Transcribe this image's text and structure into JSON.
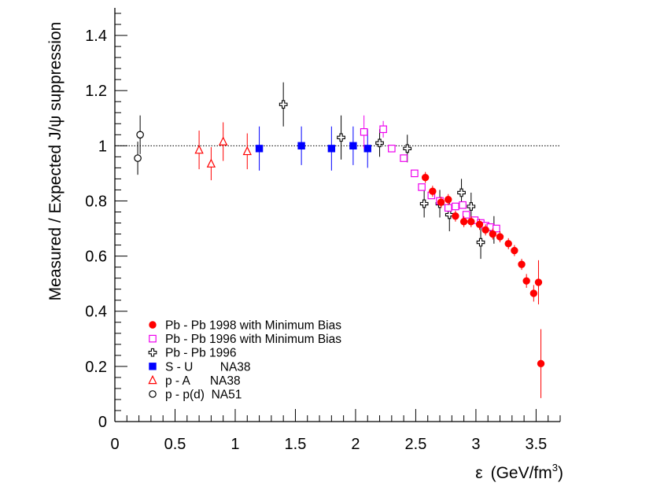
{
  "chart_data": {
    "type": "scatter",
    "title": "",
    "xlabel_symbol": "ε",
    "xlabel_units": "(GeV/fm",
    "xlabel_units_exp": "3",
    "xlabel_units_close": ")",
    "ylabel": "Measured / Expected  J/ψ suppression",
    "xlim": [
      0,
      3.7
    ],
    "ylim": [
      0,
      1.5
    ],
    "reference_line": 1.0,
    "x_tick_labels": [
      {
        "v": 0,
        "t": "0"
      },
      {
        "v": 0.5,
        "t": "0.5"
      },
      {
        "v": 1,
        "t": "1"
      },
      {
        "v": 1.5,
        "t": "1.5"
      },
      {
        "v": 2,
        "t": "2"
      },
      {
        "v": 2.5,
        "t": "2.5"
      },
      {
        "v": 3,
        "t": "3"
      },
      {
        "v": 3.5,
        "t": "3.5"
      }
    ],
    "y_tick_labels": [
      {
        "v": 0,
        "t": "0"
      },
      {
        "v": 0.2,
        "t": "0.2"
      },
      {
        "v": 0.4,
        "t": "0.4"
      },
      {
        "v": 0.6,
        "t": "0.6"
      },
      {
        "v": 0.8,
        "t": "0.8"
      },
      {
        "v": 1.0,
        "t": "1"
      },
      {
        "v": 1.2,
        "t": "1.2"
      },
      {
        "v": 1.4,
        "t": "1.4"
      }
    ],
    "legend": [
      {
        "label": "Pb - Pb 1998 with Minimum Bias",
        "marker": "filled-circle",
        "color": "#ff0000"
      },
      {
        "label": "Pb - Pb 1996 with Minimum Bias",
        "marker": "open-square",
        "color": "#ee00ee"
      },
      {
        "label": "Pb - Pb 1996",
        "marker": "open-cross",
        "color": "#000000"
      },
      {
        "label": "S - U        NA38",
        "marker": "filled-square",
        "color": "#0000ff"
      },
      {
        "label": "p - A      NA38",
        "marker": "open-triangle",
        "color": "#ff0000"
      },
      {
        "label": "p - p(d)  NA51",
        "marker": "open-circle",
        "color": "#000000"
      }
    ],
    "series": [
      {
        "name": "p - p(d)  NA51",
        "marker": "open-circle",
        "color": "#000000",
        "points": [
          {
            "x": 0.19,
            "y": 0.955,
            "err": 0.06
          },
          {
            "x": 0.21,
            "y": 1.04,
            "err": 0.07
          }
        ]
      },
      {
        "name": "p - A      NA38",
        "marker": "open-triangle",
        "color": "#ff0000",
        "points": [
          {
            "x": 0.7,
            "y": 0.985,
            "err": 0.07
          },
          {
            "x": 0.8,
            "y": 0.935,
            "err": 0.06
          },
          {
            "x": 0.9,
            "y": 1.015,
            "err": 0.07
          },
          {
            "x": 1.1,
            "y": 0.98,
            "err": 0.065
          }
        ]
      },
      {
        "name": "S - U        NA38",
        "marker": "filled-square",
        "color": "#0000ff",
        "points": [
          {
            "x": 1.2,
            "y": 0.99,
            "err": 0.08
          },
          {
            "x": 1.55,
            "y": 1.0,
            "err": 0.07
          },
          {
            "x": 1.8,
            "y": 0.99,
            "err": 0.08
          },
          {
            "x": 1.98,
            "y": 1.0,
            "err": 0.07
          },
          {
            "x": 2.1,
            "y": 0.99,
            "err": 0.07
          }
        ]
      },
      {
        "name": "Pb - Pb 1996",
        "marker": "open-cross",
        "color": "#000000",
        "points": [
          {
            "x": 1.4,
            "y": 1.15,
            "err": 0.08
          },
          {
            "x": 1.88,
            "y": 1.03,
            "err": 0.08
          },
          {
            "x": 2.2,
            "y": 1.01,
            "err": 0.05
          },
          {
            "x": 2.43,
            "y": 0.99,
            "err": 0.05
          },
          {
            "x": 2.57,
            "y": 0.79,
            "err": 0.05
          },
          {
            "x": 2.7,
            "y": 0.79,
            "err": 0.05
          },
          {
            "x": 2.78,
            "y": 0.75,
            "err": 0.06
          },
          {
            "x": 2.88,
            "y": 0.83,
            "err": 0.05
          },
          {
            "x": 2.96,
            "y": 0.78,
            "err": 0.05
          },
          {
            "x": 3.04,
            "y": 0.65,
            "err": 0.06
          },
          {
            "x": 3.15,
            "y": 0.695,
            "err": 0.05
          }
        ]
      },
      {
        "name": "Pb - Pb 1996 with Minimum Bias",
        "marker": "open-square",
        "color": "#ee00ee",
        "points": [
          {
            "x": 2.07,
            "y": 1.05,
            "err": 0.06
          },
          {
            "x": 2.23,
            "y": 1.06,
            "err": 0.03
          },
          {
            "x": 2.3,
            "y": 0.99,
            "err": 0.0
          },
          {
            "x": 2.4,
            "y": 0.955,
            "err": 0.0
          },
          {
            "x": 2.49,
            "y": 0.9,
            "err": 0.0
          },
          {
            "x": 2.55,
            "y": 0.85,
            "err": 0.0
          },
          {
            "x": 2.63,
            "y": 0.82,
            "err": 0.0
          },
          {
            "x": 2.7,
            "y": 0.8,
            "err": 0.0
          },
          {
            "x": 2.77,
            "y": 0.775,
            "err": 0.0
          },
          {
            "x": 2.83,
            "y": 0.78,
            "err": 0.0
          },
          {
            "x": 2.89,
            "y": 0.785,
            "err": 0.0
          },
          {
            "x": 2.92,
            "y": 0.75,
            "err": 0.0
          },
          {
            "x": 2.99,
            "y": 0.73,
            "err": 0.0
          },
          {
            "x": 3.04,
            "y": 0.72,
            "err": 0.0
          },
          {
            "x": 3.08,
            "y": 0.71,
            "err": 0.0
          },
          {
            "x": 3.12,
            "y": 0.705,
            "err": 0.0
          },
          {
            "x": 3.17,
            "y": 0.7,
            "err": 0.0
          }
        ]
      },
      {
        "name": "Pb - Pb 1998 with Minimum Bias",
        "marker": "filled-circle",
        "color": "#ff0000",
        "points": [
          {
            "x": 2.58,
            "y": 0.885,
            "err": 0.02
          },
          {
            "x": 2.64,
            "y": 0.835,
            "err": 0.02
          },
          {
            "x": 2.71,
            "y": 0.795,
            "err": 0.02
          },
          {
            "x": 2.77,
            "y": 0.805,
            "err": 0.02
          },
          {
            "x": 2.83,
            "y": 0.745,
            "err": 0.02
          },
          {
            "x": 2.9,
            "y": 0.725,
            "err": 0.02
          },
          {
            "x": 2.96,
            "y": 0.725,
            "err": 0.02
          },
          {
            "x": 3.03,
            "y": 0.715,
            "err": 0.02
          },
          {
            "x": 3.08,
            "y": 0.695,
            "err": 0.02
          },
          {
            "x": 3.14,
            "y": 0.68,
            "err": 0.02
          },
          {
            "x": 3.2,
            "y": 0.67,
            "err": 0.02
          },
          {
            "x": 3.27,
            "y": 0.645,
            "err": 0.02
          },
          {
            "x": 3.32,
            "y": 0.62,
            "err": 0.02
          },
          {
            "x": 3.38,
            "y": 0.57,
            "err": 0.02
          },
          {
            "x": 3.42,
            "y": 0.51,
            "err": 0.025
          },
          {
            "x": 3.48,
            "y": 0.465,
            "err": 0.03
          },
          {
            "x": 3.52,
            "y": 0.505,
            "err": 0.08
          },
          {
            "x": 3.54,
            "y": 0.21,
            "err": 0.125
          }
        ]
      }
    ]
  }
}
